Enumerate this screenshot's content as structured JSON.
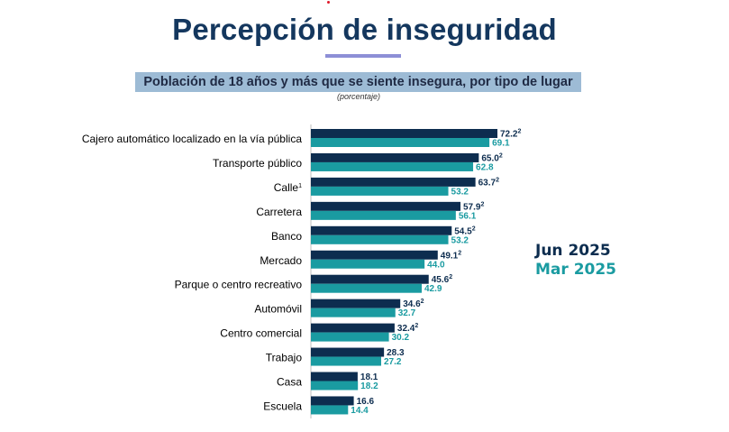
{
  "header": {
    "title": "Percepción de inseguridad",
    "subtitle": "Población de 18 años y más que se siente insegura, por tipo de lugar",
    "unit": "(porcentaje)"
  },
  "colors": {
    "series_1": "#0d2d4f",
    "series_2": "#1a9ba1",
    "title": "#14375e",
    "subtitle_bg": "#9dbbd5"
  },
  "chart_data": {
    "type": "bar",
    "orientation": "horizontal",
    "title": "Población de 18 años y más que se siente insegura, por tipo de lugar",
    "unit": "(porcentaje)",
    "categories": [
      "Cajero automático localizado en la vía pública",
      "Transporte público",
      "Calle",
      "Carretera",
      "Banco",
      "Mercado",
      "Parque o centro recreativo",
      "Automóvil",
      "Centro comercial",
      "Trabajo",
      "Casa",
      "Escuela"
    ],
    "category_superscripts": [
      "",
      "",
      "1",
      "",
      "",
      "",
      "",
      "",
      "",
      "",
      "",
      ""
    ],
    "series": [
      {
        "name": "Jun 2025",
        "color": "#0d2d4f",
        "values": [
          72.2,
          65.0,
          63.7,
          57.9,
          54.5,
          49.1,
          45.6,
          34.6,
          32.4,
          28.3,
          18.1,
          16.6
        ],
        "value_labels": [
          "72.2",
          "65.0",
          "63.7",
          "57.9",
          "54.5",
          "49.1",
          "45.6",
          "34.6",
          "32.4",
          "28.3",
          "18.1",
          "16.6"
        ],
        "value_superscripts": [
          "2",
          "2",
          "2",
          "2",
          "2",
          "2",
          "2",
          "2",
          "2",
          "",
          "",
          ""
        ]
      },
      {
        "name": "Mar 2025",
        "color": "#1a9ba1",
        "values": [
          69.1,
          62.8,
          53.2,
          56.1,
          53.2,
          44.0,
          42.9,
          32.7,
          30.2,
          27.2,
          18.2,
          14.4
        ],
        "value_labels": [
          "69.1",
          "62.8",
          "53.2",
          "56.1",
          "53.2",
          "44.0",
          "42.9",
          "32.7",
          "30.2",
          "27.2",
          "18.2",
          "14.4"
        ],
        "value_superscripts": [
          "",
          "",
          "",
          "",
          "",
          "",
          "",
          "",
          "",
          "",
          "",
          ""
        ]
      }
    ],
    "xlim": [
      0,
      80
    ],
    "legend": "right",
    "grid": false
  }
}
